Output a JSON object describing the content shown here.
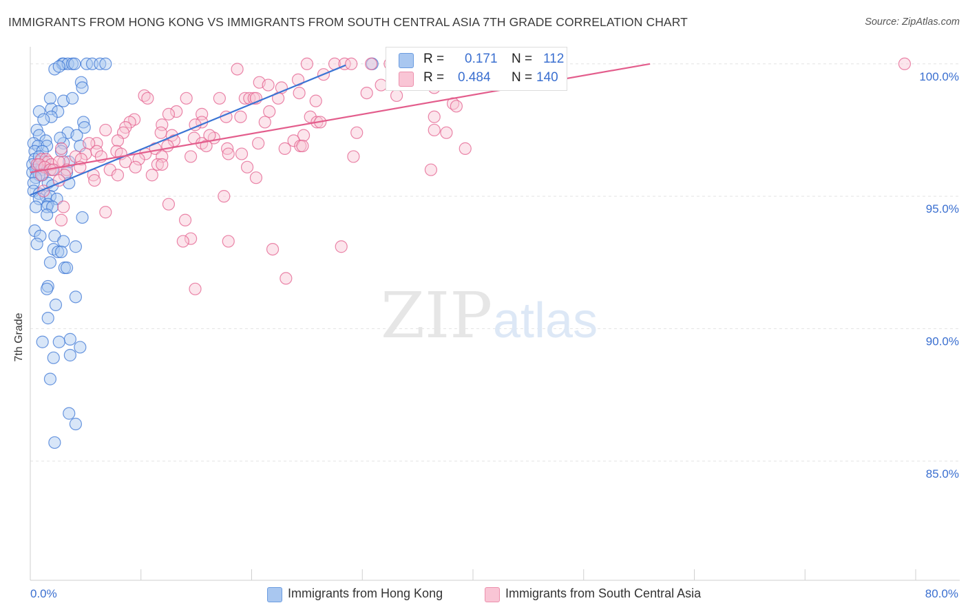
{
  "title": "IMMIGRANTS FROM HONG KONG VS IMMIGRANTS FROM SOUTH CENTRAL ASIA 7TH GRADE CORRELATION CHART",
  "source": "Source: ZipAtlas.com",
  "watermark": {
    "zip": "ZIP",
    "atlas": "atlas"
  },
  "legend": {
    "r_label": "R =",
    "n_label": "N =",
    "rows": [
      {
        "r": "0.171",
        "n": "112",
        "color": "#a9c7f0",
        "border": "#6a9be0"
      },
      {
        "r": "0.484",
        "n": "140",
        "color": "#f9c5d5",
        "border": "#ec8fac"
      }
    ]
  },
  "chart_data": {
    "type": "scatter",
    "title": "IMMIGRANTS FROM HONG KONG VS IMMIGRANTS FROM SOUTH CENTRAL ASIA 7TH GRADE CORRELATION CHART",
    "xlabel": "",
    "ylabel": "7th Grade",
    "xlim": [
      0,
      80
    ],
    "ylim": [
      80.5,
      100.8
    ],
    "x_tick_labels": [
      "0.0%",
      "80.0%"
    ],
    "y_ticks": [
      85,
      90,
      95,
      100
    ],
    "y_tick_labels": [
      "85.0%",
      "90.0%",
      "95.0%",
      "100.0%"
    ],
    "grid": true,
    "series": [
      {
        "name": "Immigrants from Hong Kong",
        "color": "#3a74d4",
        "fill": "#a9c7f0",
        "r": 0.171,
        "n": 112,
        "trend": {
          "x": [
            0,
            28.5
          ],
          "y": [
            95.05,
            99.95
          ]
        },
        "points": [
          [
            2.9,
            100.0
          ],
          [
            3.0,
            100.0
          ],
          [
            3.4,
            100.0
          ],
          [
            3.8,
            100.0
          ],
          [
            4.0,
            100.0
          ],
          [
            5.1,
            100.0
          ],
          [
            5.6,
            100.0
          ],
          [
            6.3,
            100.0
          ],
          [
            6.8,
            100.0
          ],
          [
            30.9,
            100.0
          ],
          [
            2.2,
            99.8
          ],
          [
            2.6,
            99.9
          ],
          [
            4.6,
            99.3
          ],
          [
            4.7,
            99.1
          ],
          [
            1.8,
            98.7
          ],
          [
            3.0,
            98.6
          ],
          [
            3.8,
            98.7
          ],
          [
            0.8,
            98.2
          ],
          [
            1.9,
            98.3
          ],
          [
            2.5,
            98.2
          ],
          [
            1.9,
            98.0
          ],
          [
            1.2,
            97.9
          ],
          [
            4.8,
            97.8
          ],
          [
            0.6,
            97.5
          ],
          [
            4.9,
            97.6
          ],
          [
            3.4,
            97.4
          ],
          [
            4.2,
            97.3
          ],
          [
            0.8,
            97.3
          ],
          [
            1.4,
            97.1
          ],
          [
            0.3,
            97.0
          ],
          [
            3.0,
            97.0
          ],
          [
            2.7,
            97.2
          ],
          [
            0.7,
            96.9
          ],
          [
            1.5,
            96.9
          ],
          [
            4.5,
            96.9
          ],
          [
            0.4,
            96.7
          ],
          [
            1.1,
            96.7
          ],
          [
            2.8,
            96.7
          ],
          [
            0.4,
            96.4
          ],
          [
            0.8,
            96.5
          ],
          [
            1.3,
            96.3
          ],
          [
            3.5,
            96.3
          ],
          [
            0.2,
            96.2
          ],
          [
            0.6,
            96.1
          ],
          [
            1.0,
            96.1
          ],
          [
            0.5,
            96.0
          ],
          [
            1.0,
            96.0
          ],
          [
            2.0,
            96.0
          ],
          [
            0.2,
            95.9
          ],
          [
            1.1,
            95.8
          ],
          [
            0.8,
            95.8
          ],
          [
            3.3,
            95.9
          ],
          [
            0.5,
            95.7
          ],
          [
            1.6,
            95.5
          ],
          [
            0.3,
            95.5
          ],
          [
            3.5,
            95.5
          ],
          [
            2.0,
            95.4
          ],
          [
            0.3,
            95.2
          ],
          [
            0.8,
            95.1
          ],
          [
            1.4,
            95.0
          ],
          [
            1.8,
            95.0
          ],
          [
            0.8,
            94.9
          ],
          [
            2.4,
            94.9
          ],
          [
            1.6,
            94.7
          ],
          [
            0.5,
            94.6
          ],
          [
            1.5,
            94.6
          ],
          [
            2.0,
            94.6
          ],
          [
            4.7,
            94.2
          ],
          [
            1.5,
            94.3
          ],
          [
            0.4,
            93.7
          ],
          [
            0.9,
            93.5
          ],
          [
            2.2,
            93.5
          ],
          [
            3.0,
            93.3
          ],
          [
            0.6,
            93.2
          ],
          [
            4.1,
            93.1
          ],
          [
            2.1,
            93.0
          ],
          [
            2.5,
            92.9
          ],
          [
            2.8,
            92.9
          ],
          [
            1.8,
            92.5
          ],
          [
            3.1,
            92.3
          ],
          [
            3.3,
            92.3
          ],
          [
            1.6,
            91.6
          ],
          [
            1.5,
            91.5
          ],
          [
            4.1,
            91.2
          ],
          [
            2.3,
            90.9
          ],
          [
            1.6,
            90.4
          ],
          [
            1.1,
            89.5
          ],
          [
            3.6,
            89.6
          ],
          [
            2.6,
            89.5
          ],
          [
            4.5,
            89.3
          ],
          [
            3.6,
            89.0
          ],
          [
            2.1,
            88.9
          ],
          [
            1.8,
            88.1
          ],
          [
            3.5,
            86.8
          ],
          [
            4.1,
            86.4
          ],
          [
            2.2,
            85.7
          ]
        ]
      },
      {
        "name": "Immigrants from South Central Asia",
        "color": "#e35d8c",
        "fill": "#f9c5d5",
        "r": 0.484,
        "n": 140,
        "trend": {
          "x": [
            0,
            56
          ],
          "y": [
            95.9,
            100.0
          ]
        },
        "points": [
          [
            25.0,
            100.0
          ],
          [
            27.5,
            100.0
          ],
          [
            28.4,
            100.0
          ],
          [
            29.0,
            100.0
          ],
          [
            30.8,
            100.0
          ],
          [
            32.5,
            100.0
          ],
          [
            33.6,
            100.0
          ],
          [
            38.2,
            100.0
          ],
          [
            41.0,
            100.0
          ],
          [
            45.1,
            100.0
          ],
          [
            79.0,
            100.0
          ],
          [
            18.7,
            99.8
          ],
          [
            26.5,
            99.6
          ],
          [
            24.2,
            99.4
          ],
          [
            20.7,
            99.3
          ],
          [
            21.5,
            99.2
          ],
          [
            22.7,
            99.1
          ],
          [
            24.3,
            98.9
          ],
          [
            31.7,
            99.2
          ],
          [
            36.5,
            99.1
          ],
          [
            30.4,
            98.9
          ],
          [
            33.1,
            98.8
          ],
          [
            10.3,
            98.8
          ],
          [
            10.6,
            98.7
          ],
          [
            14.1,
            98.7
          ],
          [
            17.1,
            98.7
          ],
          [
            19.4,
            98.7
          ],
          [
            19.8,
            98.7
          ],
          [
            20.2,
            98.7
          ],
          [
            20.4,
            98.7
          ],
          [
            22.4,
            98.7
          ],
          [
            25.8,
            98.6
          ],
          [
            38.2,
            98.5
          ],
          [
            38.5,
            98.4
          ],
          [
            36.5,
            98.0
          ],
          [
            13.2,
            98.2
          ],
          [
            12.5,
            98.1
          ],
          [
            15.5,
            98.1
          ],
          [
            17.7,
            98.0
          ],
          [
            19.0,
            98.0
          ],
          [
            21.6,
            98.2
          ],
          [
            25.3,
            98.0
          ],
          [
            25.9,
            97.8
          ],
          [
            9.4,
            97.9
          ],
          [
            9.0,
            97.8
          ],
          [
            11.9,
            97.7
          ],
          [
            15.5,
            97.8
          ],
          [
            14.9,
            97.7
          ],
          [
            21.2,
            97.8
          ],
          [
            26.2,
            97.8
          ],
          [
            8.6,
            97.6
          ],
          [
            6.8,
            97.5
          ],
          [
            8.4,
            97.4
          ],
          [
            11.8,
            97.4
          ],
          [
            12.8,
            97.3
          ],
          [
            14.8,
            97.2
          ],
          [
            16.6,
            97.2
          ],
          [
            16.2,
            97.3
          ],
          [
            24.7,
            97.3
          ],
          [
            29.5,
            97.4
          ],
          [
            36.5,
            97.5
          ],
          [
            37.6,
            97.4
          ],
          [
            13.0,
            97.1
          ],
          [
            15.5,
            97.0
          ],
          [
            20.6,
            97.0
          ],
          [
            23.8,
            97.1
          ],
          [
            24.4,
            96.9
          ],
          [
            7.9,
            97.1
          ],
          [
            6.0,
            97.0
          ],
          [
            5.3,
            97.0
          ],
          [
            12.4,
            96.9
          ],
          [
            15.9,
            96.9
          ],
          [
            17.8,
            96.8
          ],
          [
            23.0,
            96.8
          ],
          [
            24.6,
            96.9
          ],
          [
            39.3,
            96.8
          ],
          [
            11.3,
            96.8
          ],
          [
            2.8,
            96.8
          ],
          [
            5.0,
            96.6
          ],
          [
            6.0,
            96.7
          ],
          [
            7.8,
            96.7
          ],
          [
            8.2,
            96.6
          ],
          [
            10.4,
            96.6
          ],
          [
            11.9,
            96.5
          ],
          [
            14.5,
            96.5
          ],
          [
            17.9,
            96.6
          ],
          [
            19.1,
            96.6
          ],
          [
            29.2,
            96.5
          ],
          [
            3.0,
            96.3
          ],
          [
            4.1,
            96.5
          ],
          [
            4.6,
            96.4
          ],
          [
            6.4,
            96.5
          ],
          [
            8.6,
            96.3
          ],
          [
            9.8,
            96.4
          ],
          [
            1.0,
            96.4
          ],
          [
            1.4,
            96.4
          ],
          [
            1.6,
            96.3
          ],
          [
            1.9,
            96.2
          ],
          [
            2.6,
            96.3
          ],
          [
            0.6,
            96.2
          ],
          [
            0.8,
            96.2
          ],
          [
            1.3,
            96.1
          ],
          [
            1.8,
            96.0
          ],
          [
            2.1,
            96.0
          ],
          [
            3.3,
            96.0
          ],
          [
            4.5,
            96.1
          ],
          [
            7.2,
            96.0
          ],
          [
            9.5,
            96.1
          ],
          [
            11.5,
            96.2
          ],
          [
            11.9,
            96.2
          ],
          [
            19.6,
            96.1
          ],
          [
            36.2,
            96.0
          ],
          [
            1.0,
            95.8
          ],
          [
            3.1,
            95.8
          ],
          [
            5.7,
            95.8
          ],
          [
            11.0,
            95.8
          ],
          [
            7.9,
            95.8
          ],
          [
            20.4,
            95.7
          ],
          [
            5.8,
            95.6
          ],
          [
            2.6,
            95.6
          ],
          [
            1.2,
            95.2
          ],
          [
            17.5,
            95.0
          ],
          [
            12.5,
            94.7
          ],
          [
            3.0,
            94.6
          ],
          [
            6.8,
            94.4
          ],
          [
            14.0,
            94.1
          ],
          [
            2.8,
            94.1
          ],
          [
            14.5,
            93.4
          ],
          [
            13.8,
            93.3
          ],
          [
            17.9,
            93.3
          ],
          [
            21.9,
            93.0
          ],
          [
            28.1,
            93.1
          ],
          [
            23.1,
            91.9
          ],
          [
            14.9,
            91.5
          ]
        ]
      }
    ]
  },
  "bottom_legend": [
    "Immigrants from Hong Kong",
    "Immigrants from South Central Asia"
  ]
}
